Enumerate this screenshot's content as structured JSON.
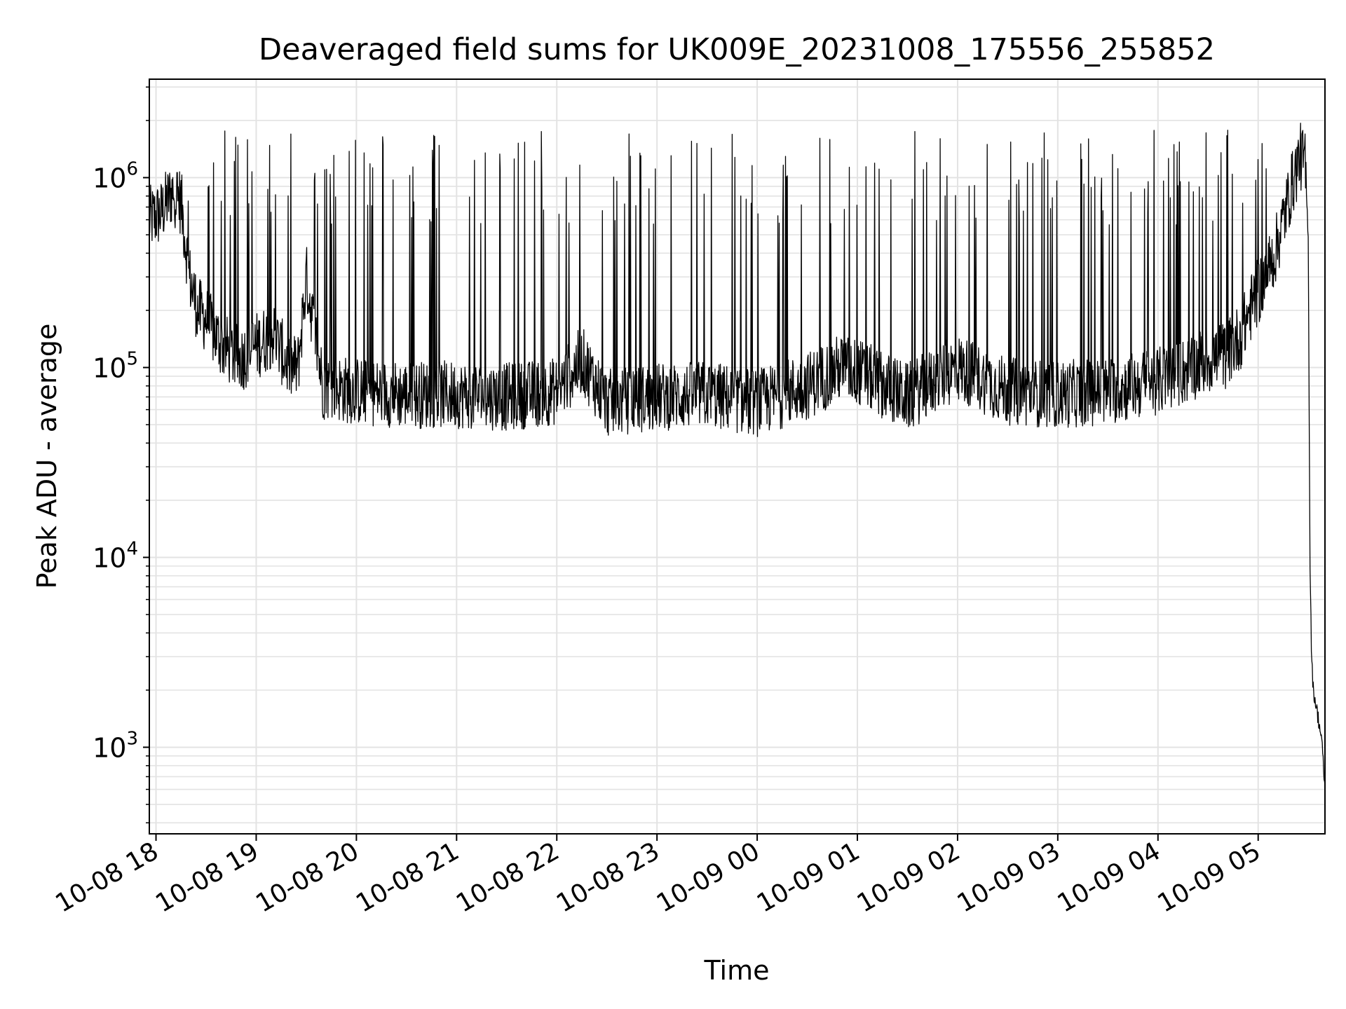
{
  "colors": {
    "line": "#000000",
    "grid": "#e3e3e3",
    "axes": "#000000",
    "background": "#ffffff"
  },
  "chart_data": {
    "type": "line",
    "title": "Deaveraged field sums for UK009E_20231008_175556_255852",
    "xlabel": "Time",
    "ylabel": "Peak ADU - average",
    "yscale": "log",
    "xlim": [
      "2023-10-08 17:56",
      "2023-10-09 05:40"
    ],
    "ylim": [
      350,
      3300000
    ],
    "grid": true,
    "x_ticks": [
      "2023-10-08 18:00",
      "2023-10-08 19:00",
      "2023-10-08 20:00",
      "2023-10-08 21:00",
      "2023-10-08 22:00",
      "2023-10-08 23:00",
      "2023-10-09 00:00",
      "2023-10-09 01:00",
      "2023-10-09 02:00",
      "2023-10-09 03:00",
      "2023-10-09 04:00",
      "2023-10-09 05:00"
    ],
    "x_tick_labels": [
      "10-08 18",
      "10-08 19",
      "10-08 20",
      "10-08 21",
      "10-08 22",
      "10-08 23",
      "10-09 00",
      "10-09 01",
      "10-09 02",
      "10-09 03",
      "10-09 04",
      "10-09 05"
    ],
    "y_ticks": [
      1000,
      10000,
      100000,
      1000000
    ],
    "y_tick_labels": [
      {
        "base": "10",
        "exp": "3"
      },
      {
        "base": "10",
        "exp": "4"
      },
      {
        "base": "10",
        "exp": "5"
      },
      {
        "base": "10",
        "exp": "6"
      }
    ],
    "series": [
      {
        "x": [
          "2023-10-08 17:56",
          "2023-10-08 18:03",
          "2023-10-08 18:10",
          "2023-10-08 18:15",
          "2023-10-08 18:20",
          "2023-10-08 18:25",
          "2023-10-08 18:30",
          "2023-10-08 18:35",
          "2023-10-08 18:40",
          "2023-10-08 18:50",
          "2023-10-08 19:00",
          "2023-10-08 19:10",
          "2023-10-08 19:20",
          "2023-10-08 19:25",
          "2023-10-08 19:30",
          "2023-10-08 19:40",
          "2023-10-08 20:00",
          "2023-10-08 20:30",
          "2023-10-08 21:00",
          "2023-10-08 21:30",
          "2023-10-08 22:00",
          "2023-10-08 22:15",
          "2023-10-08 22:30",
          "2023-10-08 23:00",
          "2023-10-08 23:30",
          "2023-10-09 00:00",
          "2023-10-09 00:30",
          "2023-10-09 00:50",
          "2023-10-09 01:00",
          "2023-10-09 01:30",
          "2023-10-09 02:00",
          "2023-10-09 02:30",
          "2023-10-09 03:00",
          "2023-10-09 03:30",
          "2023-10-09 04:00",
          "2023-10-09 04:10",
          "2023-10-09 04:20",
          "2023-10-09 04:30",
          "2023-10-09 04:40",
          "2023-10-09 04:45",
          "2023-10-09 04:50",
          "2023-10-09 04:55",
          "2023-10-09 05:00",
          "2023-10-09 05:10",
          "2023-10-09 05:15",
          "2023-10-09 05:20",
          "2023-10-09 05:25",
          "2023-10-09 05:28",
          "2023-10-09 05:30",
          "2023-10-09 05:31",
          "2023-10-09 05:32",
          "2023-10-09 05:33",
          "2023-10-09 05:35",
          "2023-10-09 05:38",
          "2023-10-09 05:40"
        ],
        "y": [
          600000,
          650000,
          850000,
          750000,
          300000,
          200000,
          180000,
          150000,
          130000,
          110000,
          130000,
          150000,
          100000,
          100000,
          300000,
          80000,
          75000,
          72000,
          72000,
          70000,
          75000,
          110000,
          65000,
          70000,
          72000,
          65000,
          80000,
          100000,
          95000,
          70000,
          100000,
          75000,
          72000,
          75000,
          85000,
          90000,
          100000,
          110000,
          115000,
          130000,
          150000,
          200000,
          250000,
          400000,
          600000,
          900000,
          1300000,
          1200000,
          500000,
          10000,
          3000,
          2000,
          1600,
          1100,
          600
        ]
      }
    ]
  }
}
